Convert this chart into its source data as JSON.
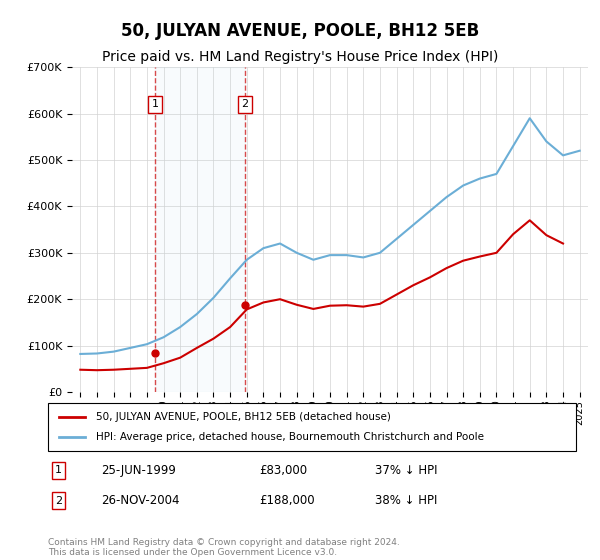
{
  "title": "50, JULYAN AVENUE, POOLE, BH12 5EB",
  "subtitle": "Price paid vs. HM Land Registry's House Price Index (HPI)",
  "title_fontsize": 12,
  "subtitle_fontsize": 10,
  "hpi_color": "#6baed6",
  "price_color": "#cc0000",
  "marker_color": "#cc0000",
  "ylim": [
    0,
    700000
  ],
  "yticks": [
    0,
    100000,
    200000,
    300000,
    400000,
    500000,
    600000,
    700000
  ],
  "ytick_labels": [
    "£0",
    "£100K",
    "£200K",
    "£300K",
    "£400K",
    "£500K",
    "£600K",
    "£700K"
  ],
  "transactions": [
    {
      "year": 1999.5,
      "price": 83000,
      "label": "1",
      "date": "25-JUN-1999",
      "pct": "37% ↓ HPI"
    },
    {
      "year": 2004.9,
      "price": 188000,
      "label": "2",
      "date": "26-NOV-2004",
      "pct": "38% ↓ HPI"
    }
  ],
  "legend_entry1": "50, JULYAN AVENUE, POOLE, BH12 5EB (detached house)",
  "legend_entry2": "HPI: Average price, detached house, Bournemouth Christchurch and Poole",
  "footnote": "Contains HM Land Registry data © Crown copyright and database right 2024.\nThis data is licensed under the Open Government Licence v3.0.",
  "hpi_years": [
    1995,
    1996,
    1997,
    1998,
    1999,
    2000,
    2001,
    2002,
    2003,
    2004,
    2005,
    2006,
    2007,
    2008,
    2009,
    2010,
    2011,
    2012,
    2013,
    2014,
    2015,
    2016,
    2017,
    2018,
    2019,
    2020,
    2021,
    2022,
    2023,
    2024,
    2025
  ],
  "hpi_values": [
    82000,
    83000,
    87000,
    95000,
    103000,
    118000,
    140000,
    168000,
    203000,
    245000,
    285000,
    310000,
    320000,
    300000,
    285000,
    295000,
    295000,
    290000,
    300000,
    330000,
    360000,
    390000,
    420000,
    445000,
    460000,
    470000,
    530000,
    590000,
    540000,
    510000,
    520000
  ],
  "price_years": [
    1995,
    1996,
    1997,
    1998,
    1999,
    2000,
    2001,
    2002,
    2003,
    2004,
    2005,
    2006,
    2007,
    2008,
    2009,
    2010,
    2011,
    2012,
    2013,
    2014,
    2015,
    2016,
    2017,
    2018,
    2019,
    2020,
    2021,
    2022,
    2023,
    2024
  ],
  "price_values": [
    48000,
    47000,
    48000,
    50000,
    52000,
    62000,
    74000,
    95000,
    115000,
    140000,
    178000,
    193000,
    200000,
    188000,
    179000,
    186000,
    187000,
    184000,
    190000,
    210000,
    230000,
    247000,
    267000,
    283000,
    292000,
    300000,
    340000,
    370000,
    338000,
    320000
  ]
}
